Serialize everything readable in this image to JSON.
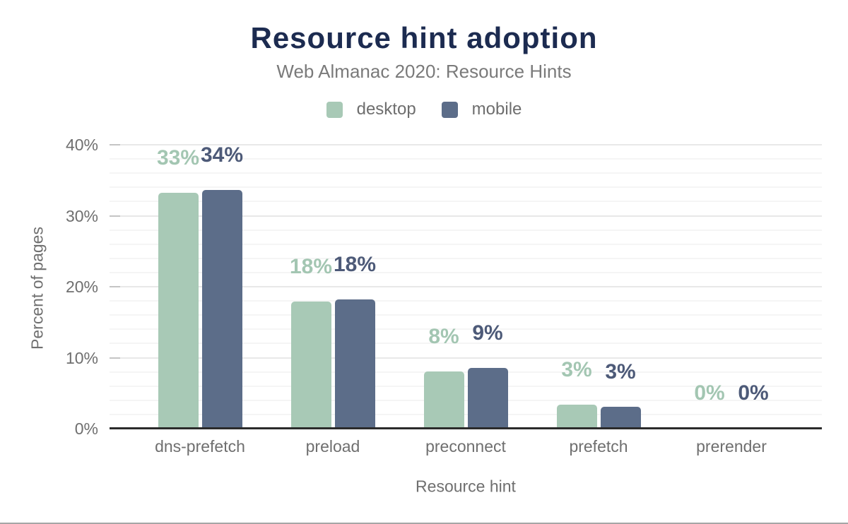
{
  "chart_data": {
    "type": "bar",
    "title": "Resource hint adoption",
    "subtitle": "Web Almanac 2020: Resource Hints",
    "xlabel": "Resource hint",
    "ylabel": "Percent of pages",
    "categories": [
      "dns-prefetch",
      "preload",
      "preconnect",
      "prefetch",
      "prerender"
    ],
    "series": [
      {
        "name": "desktop",
        "color": "#a8c9b6",
        "label_color": "#a3c6b2",
        "values": [
          33.2,
          17.9,
          8.1,
          3.4,
          0.1
        ],
        "labels": [
          "33%",
          "18%",
          "8%",
          "3%",
          "0%"
        ]
      },
      {
        "name": "mobile",
        "color": "#5c6d89",
        "label_color": "#4d5a78",
        "values": [
          33.6,
          18.2,
          8.6,
          3.1,
          0.1
        ],
        "labels": [
          "34%",
          "18%",
          "9%",
          "3%",
          "0%"
        ]
      }
    ],
    "ylim": [
      0,
      40
    ],
    "yticks": [
      {
        "value": 0,
        "label": "0%"
      },
      {
        "value": 10,
        "label": "10%"
      },
      {
        "value": 20,
        "label": "20%"
      },
      {
        "value": 30,
        "label": "30%"
      },
      {
        "value": 40,
        "label": "40%"
      }
    ],
    "grid": {
      "major_step": 10,
      "minor_step": 2,
      "shown": true
    },
    "legend_position": "top"
  },
  "colors": {
    "background": "#ffffff",
    "title": "#1c2b50",
    "subtitle": "#7a7a7a",
    "legend_text": "#6e6e6e",
    "axis_text": "#6f6f6f",
    "axis_line": "#2b2b2b",
    "tick": "#c4c4c4",
    "grid_major": "#e8e8e8",
    "grid_minor": "#f5f5f5",
    "frame_edge": "#a6a6a6"
  }
}
